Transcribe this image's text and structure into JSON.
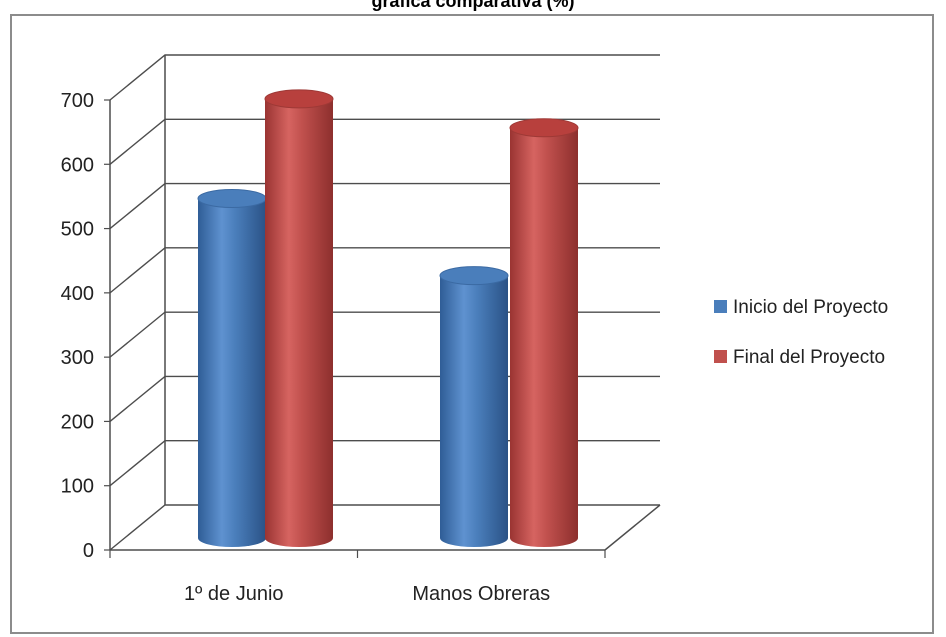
{
  "title": "gráfica comparativa (%)",
  "colors": {
    "series_blue": "#4a7ebb",
    "series_red": "#c0504d",
    "grid": "#4d4d4d",
    "frame": "#8c8c8c"
  },
  "chart_data": {
    "type": "bar",
    "style": "3d-cylinder",
    "title": "gráfica comparativa (%)",
    "categories": [
      "1º de Junio",
      "Manos Obreras"
    ],
    "series": [
      {
        "name": "Inicio del Proyecto",
        "color": "#4a7ebb",
        "values": [
          525,
          405
        ]
      },
      {
        "name": "Final del Proyecto",
        "color": "#c0504d",
        "values": [
          680,
          635
        ]
      }
    ],
    "y_ticks": [
      "0",
      "100",
      "200",
      "300",
      "400",
      "500",
      "600",
      "700"
    ],
    "ylim": [
      0,
      700
    ],
    "xlabel": "",
    "ylabel": "",
    "grid": true,
    "legend_position": "right"
  }
}
